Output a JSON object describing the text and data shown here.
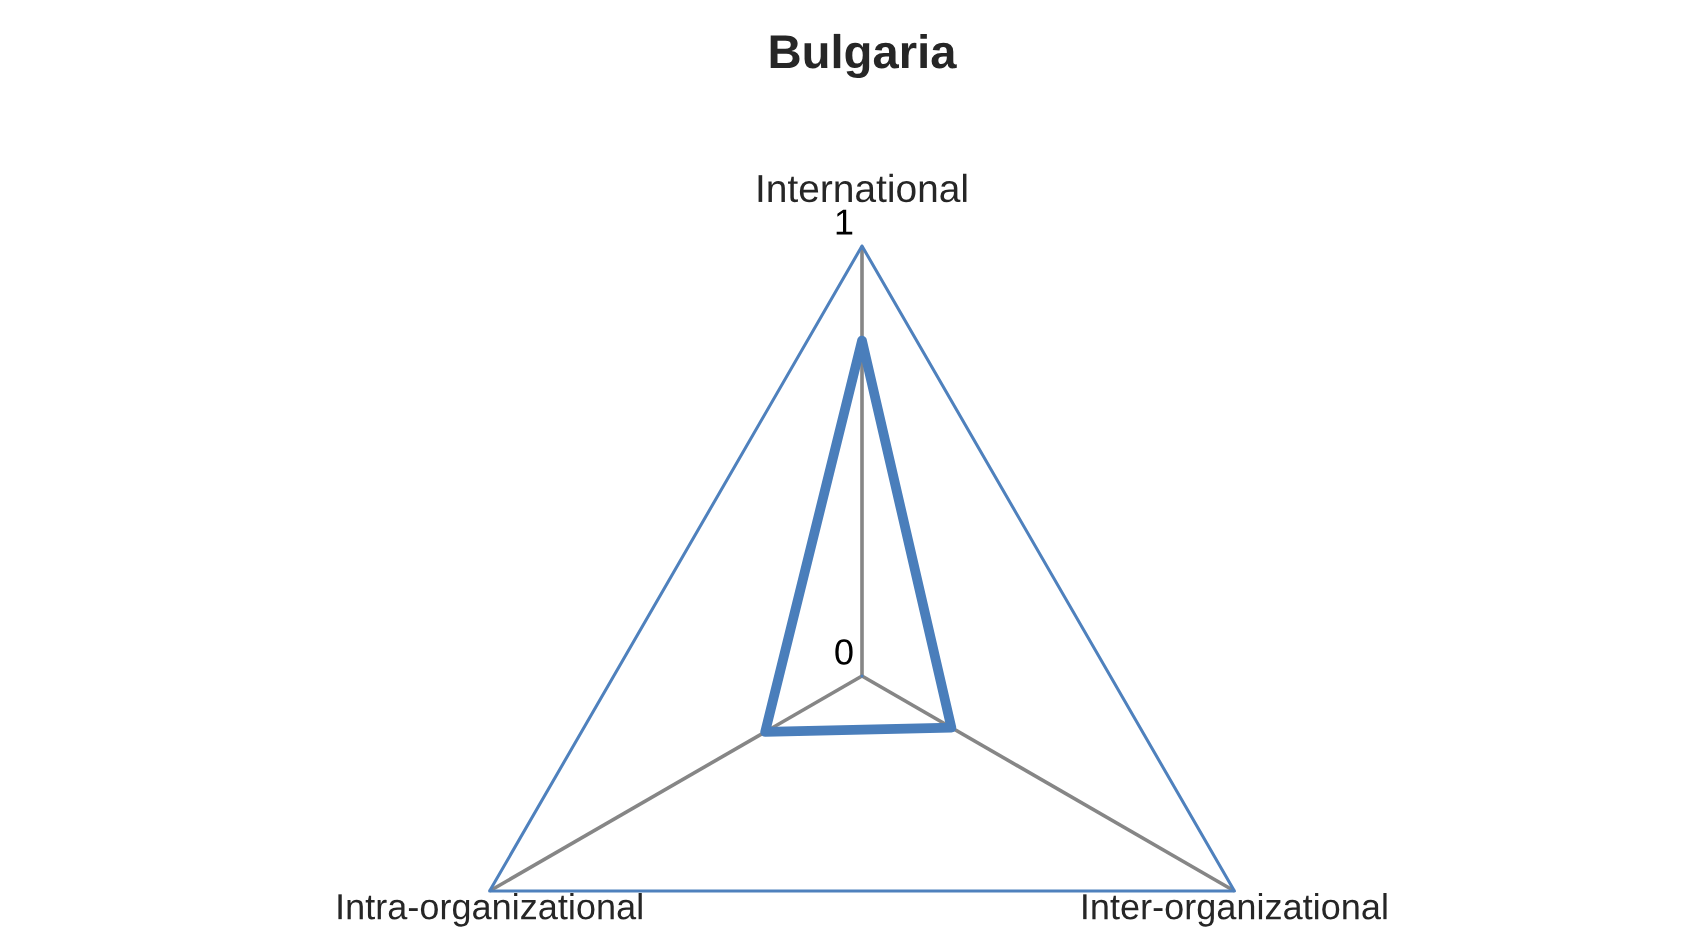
{
  "chart_data": {
    "type": "radar",
    "title": "Bulgaria",
    "categories": [
      "International",
      "Inter-organizational",
      "Intra-organizational"
    ],
    "series": [
      {
        "color": "#4a7ebb",
        "values": [
          0.78,
          0.24,
          0.26
        ]
      }
    ],
    "ylim": [
      0,
      1
    ],
    "yticks": [
      0,
      1
    ],
    "grid": true,
    "marker": "none",
    "line_style": "solid"
  }
}
